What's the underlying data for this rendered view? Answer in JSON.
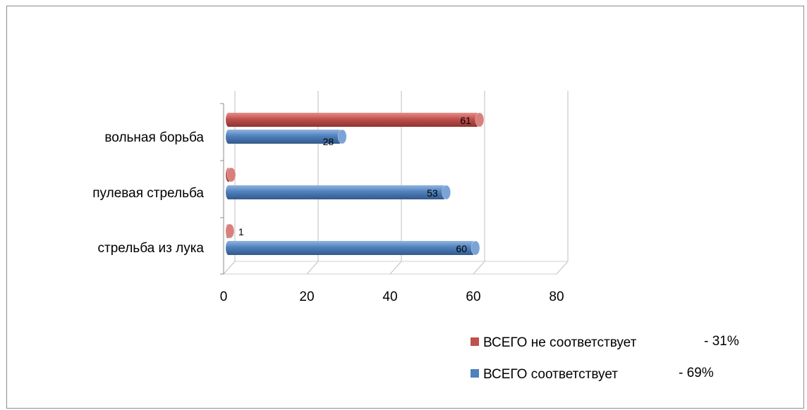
{
  "chart_data": {
    "type": "bar",
    "orientation": "horizontal",
    "style": "3d-cylinder",
    "categories": [
      "вольная борьба",
      "пулевая стрельба",
      "стрельба из лука"
    ],
    "series": [
      {
        "name": "ВСЕГО не соответствует",
        "legend_suffix": "- 31%",
        "color": "#C0504D",
        "values": [
          61,
          0,
          1
        ],
        "labels": [
          "61",
          "",
          "1"
        ]
      },
      {
        "name": "ВСЕГО соответствует",
        "legend_suffix": "- 69%",
        "color": "#4F81BD",
        "values": [
          28,
          53,
          60
        ],
        "labels": [
          "28",
          "53",
          "60"
        ]
      }
    ],
    "xlim": [
      0,
      80
    ],
    "x_ticks": [
      "0",
      "20",
      "40",
      "60",
      "80"
    ],
    "grid": "vertical",
    "legend_position": "bottom-right"
  }
}
